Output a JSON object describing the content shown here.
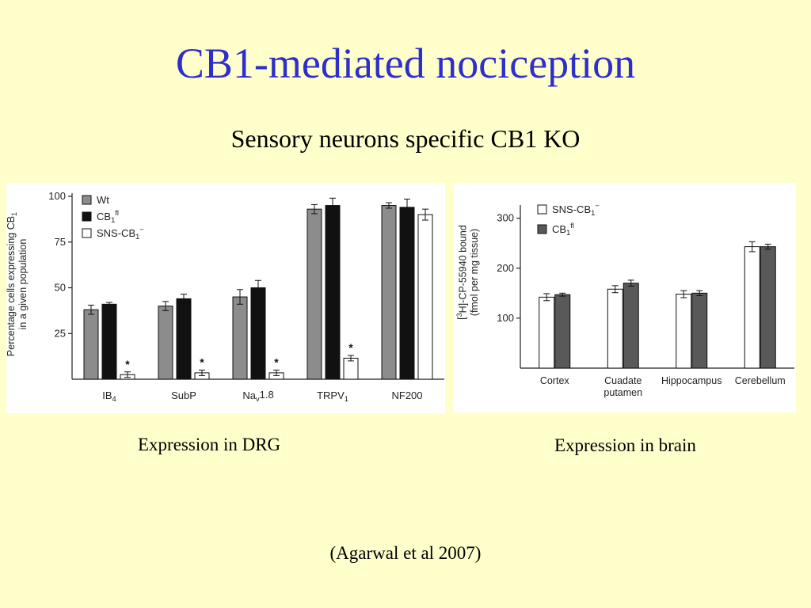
{
  "slide": {
    "title": "CB1-mediated nociception",
    "subtitle": "Sensory neurons specific CB1 KO",
    "caption_drg": "Expression in DRG",
    "caption_brain": "Expression in brain",
    "citation": "(Agarwal et al 2007)"
  },
  "chart_data": [
    {
      "type": "bar",
      "ylabel": [
        "Percentage cells expressing CB",
        "1",
        "",
        "in a given population"
      ],
      "yticks": [
        25,
        50,
        75,
        100
      ],
      "ylim": [
        0,
        100
      ],
      "grid": false,
      "legend_position": "top-left",
      "categories": [
        [
          "IB",
          "4",
          ""
        ],
        [
          "SubP",
          "",
          ""
        ],
        [
          "Na",
          "v",
          "1.8"
        ],
        [
          "TRPV",
          "1",
          ""
        ],
        [
          "NF200",
          "",
          ""
        ]
      ],
      "series": [
        {
          "name": [
            "Wt",
            "",
            ""
          ],
          "color": "#8c8c8c",
          "values": [
            38,
            40,
            45,
            93,
            95
          ],
          "errors": [
            2.5,
            2.5,
            4,
            2.5,
            1.5
          ]
        },
        {
          "name": [
            "CB",
            "1",
            "fl"
          ],
          "color": "#111111",
          "values": [
            41,
            44,
            50,
            95,
            94
          ],
          "errors": [
            1,
            2.5,
            4,
            4,
            4.5
          ]
        },
        {
          "name": [
            "SNS-CB",
            "1",
            "−"
          ],
          "color": "#ffffff",
          "values": [
            2.5,
            3.5,
            3.5,
            11.5,
            90
          ],
          "errors": [
            1.5,
            1.5,
            1.5,
            1.5,
            3
          ]
        }
      ],
      "annotations": [
        {
          "category": 0,
          "series": 2,
          "text": "*"
        },
        {
          "category": 1,
          "series": 2,
          "text": "*"
        },
        {
          "category": 2,
          "series": 2,
          "text": "*"
        },
        {
          "category": 3,
          "series": 2,
          "text": "*"
        }
      ]
    },
    {
      "type": "bar",
      "ylabel": [
        "[",
        "3",
        "H]-CP-55940 bound",
        "(fmol per mg tissue)"
      ],
      "yticks": [
        100,
        200,
        300
      ],
      "ylim": [
        0,
        320
      ],
      "grid": false,
      "legend_position": "top-left",
      "categories": [
        [
          "Cortex",
          "",
          ""
        ],
        [
          "Cuadate\nputamen",
          "",
          ""
        ],
        [
          "Hippocampus",
          "",
          ""
        ],
        [
          "Cerebellum",
          "",
          ""
        ]
      ],
      "series": [
        {
          "name": [
            "SNS-CB",
            "1",
            "−"
          ],
          "color": "#ffffff",
          "values": [
            142,
            158,
            148,
            243
          ],
          "errors": [
            7,
            7,
            7,
            10
          ]
        },
        {
          "name": [
            "CB",
            "1",
            "fl"
          ],
          "color": "#595959",
          "values": [
            147,
            170,
            150,
            243
          ],
          "errors": [
            3,
            6,
            5,
            5
          ]
        }
      ],
      "annotations": []
    }
  ]
}
